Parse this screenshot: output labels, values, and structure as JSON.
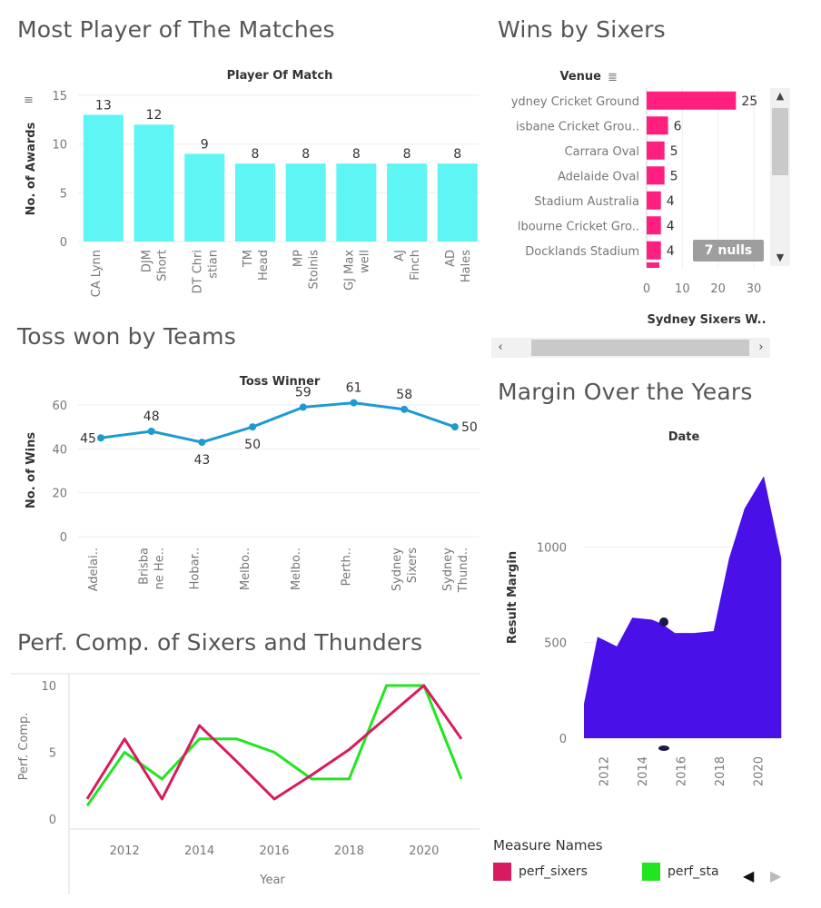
{
  "colors": {
    "cyan": "#5ff5f5",
    "pink": "#ff1f7f",
    "blue_line": "#1d9bd1",
    "purple": "#4a10e8",
    "sixers": "#d81b60",
    "sta": "#22e522"
  },
  "panels": {
    "pom": {
      "title": "Most Player of The Matches"
    },
    "wins": {
      "title": "Wins by Sixers"
    },
    "toss": {
      "title": "Toss won by Teams"
    },
    "margin": {
      "title": "Margin Over the Years"
    },
    "perf": {
      "title": "Perf. Comp. of Sixers and Thunders"
    }
  },
  "chart_data": [
    {
      "id": "pom",
      "type": "bar",
      "title": "Player Of Match",
      "ylabel": "No. of Awards",
      "ylim": [
        0,
        15
      ],
      "yticks": [
        0,
        5,
        10,
        15
      ],
      "categories": [
        [
          "CA Lynn"
        ],
        [
          "DJM",
          "Short"
        ],
        [
          "DT Chri",
          "stian"
        ],
        [
          "TM",
          "Head"
        ],
        [
          "MP",
          "Stoinis"
        ],
        [
          "GJ Max",
          "well"
        ],
        [
          "AJ",
          "Finch"
        ],
        [
          "AD",
          "Hales"
        ]
      ],
      "values": [
        13,
        12,
        9,
        8,
        8,
        8,
        8,
        8
      ]
    },
    {
      "id": "wins",
      "type": "bar",
      "orientation": "horizontal",
      "ylabel": "Venue",
      "xlabel": "Sydney Sixers W..",
      "xlim": [
        0,
        30
      ],
      "xticks": [
        0,
        10,
        20,
        30
      ],
      "categories": [
        "ydney Cricket Ground",
        "isbane Cricket Grou..",
        "Carrara Oval",
        "Adelaide Oval",
        "Stadium Australia",
        "lbourne Cricket Gro..",
        "Docklands Stadium"
      ],
      "values": [
        25,
        6,
        5,
        5,
        4,
        4,
        4
      ],
      "annotation": "7 nulls"
    },
    {
      "id": "toss",
      "type": "line",
      "title": "Toss Winner",
      "ylabel": "No. of Wins",
      "ylim": [
        0,
        60
      ],
      "yticks": [
        0,
        20,
        40,
        60
      ],
      "categories": [
        [
          "Adelai.."
        ],
        [
          "Brisba",
          "ne He.."
        ],
        [
          "Hobar.."
        ],
        [
          "Melbo.."
        ],
        [
          "Melbo.."
        ],
        [
          "Perth.."
        ],
        [
          "Sydney",
          "Sixers"
        ],
        [
          "Sydney",
          "Thund.."
        ]
      ],
      "values": [
        45,
        48,
        43,
        50,
        59,
        61,
        58,
        50
      ]
    },
    {
      "id": "margin",
      "type": "area",
      "title": "Date",
      "ylabel": "Result Margin",
      "yticks": [
        0,
        500,
        1000
      ],
      "xticks": [
        2012,
        2014,
        2016,
        2018,
        2020
      ],
      "x": [
        2011,
        2011.7,
        2012.7,
        2013.5,
        2014.5,
        2015,
        2015.7,
        2016.7,
        2017.7,
        2018.5,
        2019.3,
        2020.3,
        2021.2
      ],
      "y": [
        180,
        530,
        480,
        630,
        620,
        600,
        550,
        550,
        560,
        940,
        1200,
        1370,
        940
      ]
    },
    {
      "id": "perf",
      "type": "line",
      "xlabel": "Year",
      "ylabel": "Perf. Comp.",
      "ylim": [
        0,
        10
      ],
      "yticks": [
        0,
        5,
        10
      ],
      "xticks": [
        2012,
        2014,
        2016,
        2018,
        2020
      ],
      "x": [
        2011,
        2012,
        2013,
        2014,
        2015,
        2016,
        2017,
        2018,
        2019,
        2020,
        2021
      ],
      "legend_title": "Measure Names",
      "series": [
        {
          "name": "perf_sixers",
          "values": [
            1.5,
            6,
            1.5,
            7,
            4.3,
            1.5,
            3.3,
            5.2,
            7.6,
            10,
            6
          ]
        },
        {
          "name": "perf_sta",
          "values": [
            1,
            5,
            3,
            6,
            6,
            5,
            3,
            3,
            10,
            10,
            3
          ]
        }
      ]
    }
  ]
}
